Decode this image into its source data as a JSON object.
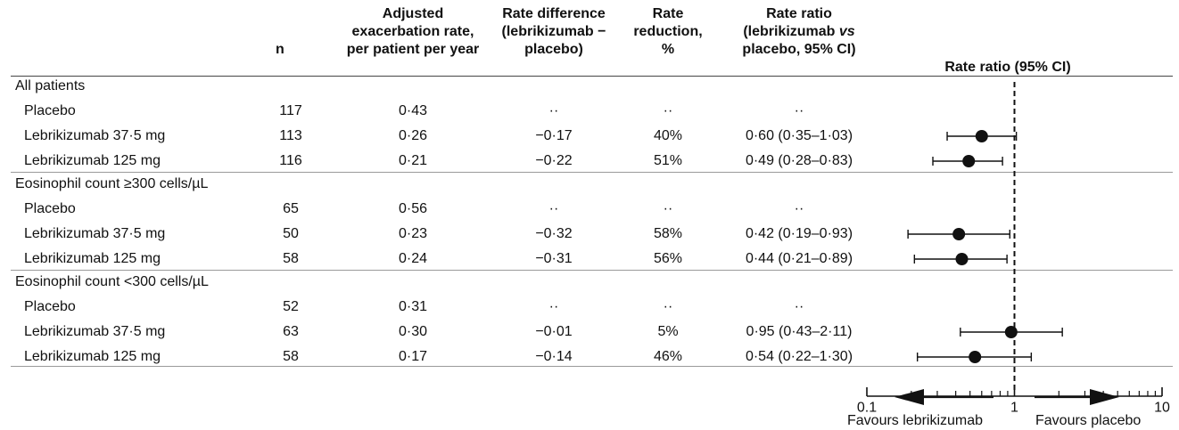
{
  "chart_data": {
    "type": "forest",
    "headers": {
      "n": "n",
      "rate": [
        "Adjusted",
        "exacerbation rate,",
        "per patient per year"
      ],
      "diff": [
        "Rate difference",
        "(lebrikizumab −",
        "placebo)"
      ],
      "reduction": [
        "Rate",
        "reduction,",
        "%"
      ],
      "ratio": [
        "Rate ratio",
        "(lebrikizumab vs",
        "placebo, 95% CI)"
      ],
      "plot": "Rate ratio (95% CI)"
    },
    "groups": [
      {
        "name": "All patients",
        "rows": [
          {
            "label": "Placebo",
            "n": "117",
            "rate": "0·43",
            "diff": "··",
            "reduction": "··",
            "ratio_text": "··",
            "ratio": null,
            "lo": null,
            "hi": null
          },
          {
            "label": "Lebrikizumab 37·5 mg",
            "n": "113",
            "rate": "0·26",
            "diff": "−0·17",
            "reduction": "40%",
            "ratio_text": "0·60 (0·35–1·03)",
            "ratio": 0.6,
            "lo": 0.35,
            "hi": 1.03
          },
          {
            "label": "Lebrikizumab 125 mg",
            "n": "116",
            "rate": "0·21",
            "diff": "−0·22",
            "reduction": "51%",
            "ratio_text": "0·49 (0·28–0·83)",
            "ratio": 0.49,
            "lo": 0.28,
            "hi": 0.83
          }
        ]
      },
      {
        "name": "Eosinophil count ≥300 cells/µL",
        "rows": [
          {
            "label": "Placebo",
            "n": "65",
            "rate": "0·56",
            "diff": "··",
            "reduction": "··",
            "ratio_text": "··",
            "ratio": null,
            "lo": null,
            "hi": null
          },
          {
            "label": "Lebrikizumab 37·5 mg",
            "n": "50",
            "rate": "0·23",
            "diff": "−0·32",
            "reduction": "58%",
            "ratio_text": "0·42 (0·19–0·93)",
            "ratio": 0.42,
            "lo": 0.19,
            "hi": 0.93
          },
          {
            "label": "Lebrikizumab 125 mg",
            "n": "58",
            "rate": "0·24",
            "diff": "−0·31",
            "reduction": "56%",
            "ratio_text": "0·44 (0·21–0·89)",
            "ratio": 0.44,
            "lo": 0.21,
            "hi": 0.89
          }
        ]
      },
      {
        "name": "Eosinophil count <300 cells/µL",
        "rows": [
          {
            "label": "Placebo",
            "n": "52",
            "rate": "0·31",
            "diff": "··",
            "reduction": "··",
            "ratio_text": "··",
            "ratio": null,
            "lo": null,
            "hi": null
          },
          {
            "label": "Lebrikizumab 37·5 mg",
            "n": "63",
            "rate": "0·30",
            "diff": "−0·01",
            "reduction": "5%",
            "ratio_text": "0·95 (0·43–2·11)",
            "ratio": 0.95,
            "lo": 0.43,
            "hi": 2.11
          },
          {
            "label": "Lebrikizumab 125 mg",
            "n": "58",
            "rate": "0·17",
            "diff": "−0·14",
            "reduction": "46%",
            "ratio_text": "0·54 (0·22–1·30)",
            "ratio": 0.54,
            "lo": 0.22,
            "hi": 1.3
          }
        ]
      }
    ],
    "x_axis": {
      "scale": "log",
      "range": [
        0.1,
        10
      ],
      "reference": 1,
      "tick_labels": [
        {
          "v": 0.1,
          "text": "0.1"
        },
        {
          "v": 1,
          "text": "1"
        },
        {
          "v": 10,
          "text": "10"
        }
      ],
      "left_label": "Favours lebrikizumab",
      "right_label": "Favours placebo"
    }
  }
}
